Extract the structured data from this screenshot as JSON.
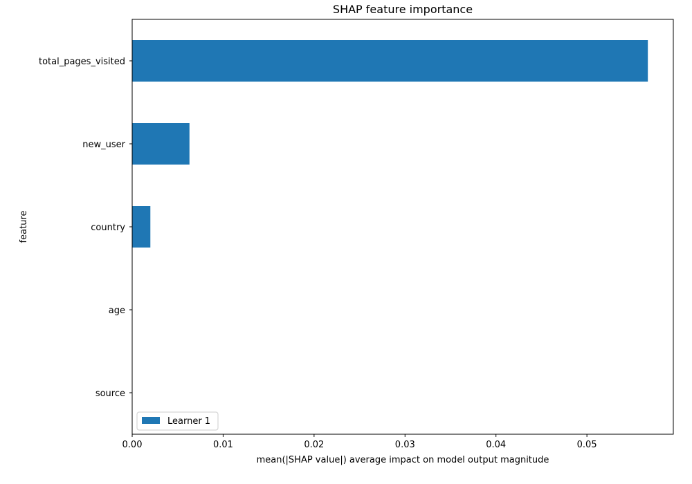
{
  "chart_data": {
    "type": "bar",
    "orientation": "horizontal",
    "title": "SHAP feature importance",
    "xlabel": "mean(|SHAP value|) average impact on model output magnitude",
    "ylabel": "feature",
    "categories": [
      "total_pages_visited",
      "new_user",
      "country",
      "age",
      "source"
    ],
    "series": [
      {
        "name": "Learner 1",
        "values": [
          0.0567,
          0.0063,
          0.002,
          0.0,
          0.0
        ],
        "color": "#1f77b4"
      }
    ],
    "xlim": [
      0,
      0.0595
    ],
    "xticks": [
      0.0,
      0.01,
      0.02,
      0.03,
      0.04,
      0.05
    ],
    "xtick_labels": [
      "0.00",
      "0.01",
      "0.02",
      "0.03",
      "0.04",
      "0.05"
    ],
    "grid": false,
    "legend_position": "lower-left"
  }
}
